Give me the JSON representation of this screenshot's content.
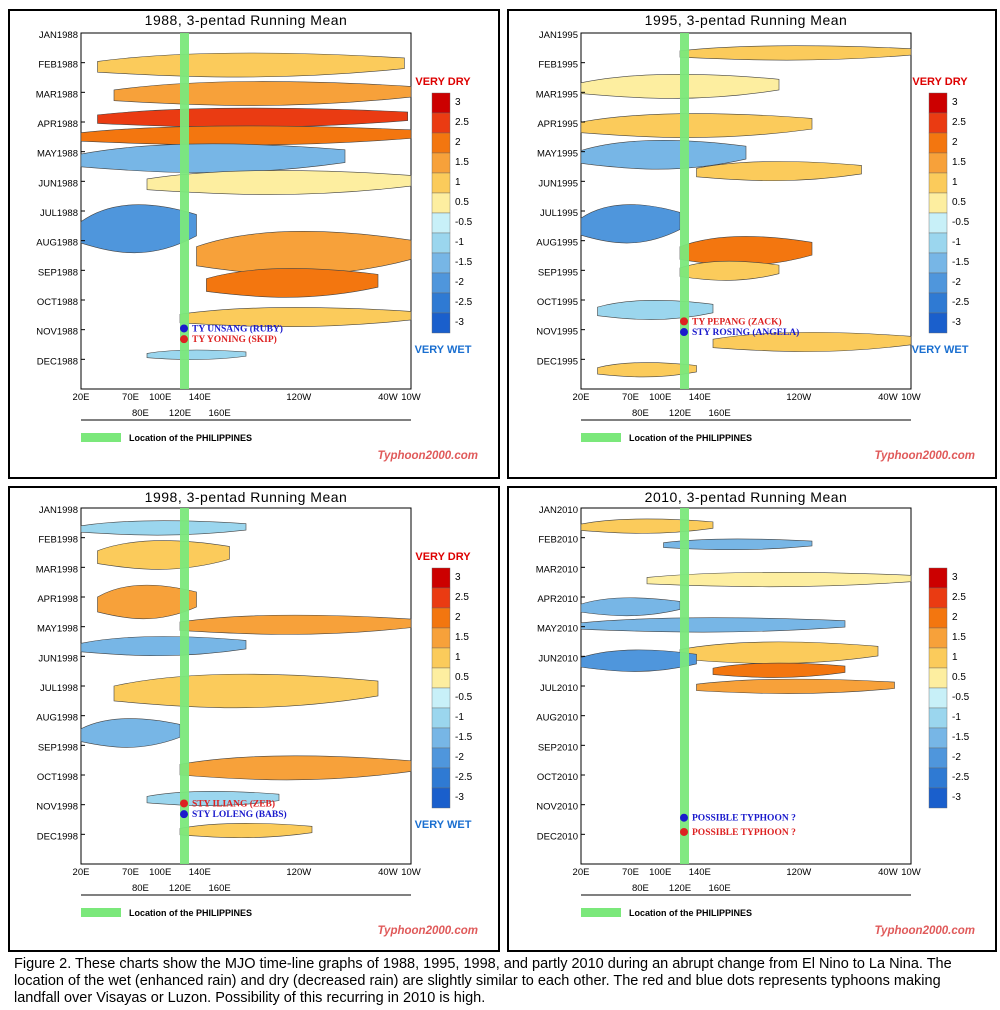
{
  "colors": {
    "very_dry": "#dd0000",
    "very_wet": "#1a6fd0",
    "philippines": "#7be87b",
    "watermark": "#e05a5a",
    "dot_blue": "#1a1acc",
    "dot_red": "#dd2222"
  },
  "legend_labels": {
    "very_dry": "VERY DRY",
    "very_wet": "VERY WET",
    "philippines": "Location of the PHILIPPINES",
    "watermark": "Typhoon2000.com"
  },
  "caption": "Figure 2. These charts  show the  MJO time-line graphs of 1988, 1995, 1998, and partly 2010 during an abrupt change from El Nino to La Nina.  The location of the wet (enhanced rain) and dry (decreased rain)  are slightly similar to each other. The red and blue dots represents typhoons making landfall over Visayas or Luzon. Possibility of this recurring in 2010 is high.",
  "chart_data": [
    {
      "type": "heatmap",
      "title": "1988, 3-pentad Running Mean",
      "y_labels": [
        "JAN1988",
        "FEB1988",
        "MAR1988",
        "APR1988",
        "MAY1988",
        "JUN1988",
        "JUL1988",
        "AUG1988",
        "SEP1988",
        "OCT1988",
        "NOV1988",
        "DEC1988"
      ],
      "x_labels_top": [
        "20E",
        "70E",
        "100E",
        "140E",
        "120W",
        "40W",
        "10W"
      ],
      "x_labels_bottom": [
        "80E",
        "120E",
        "160E"
      ],
      "colorbar_levels": [
        "3",
        "2.5",
        "2",
        "1.5",
        "1",
        "0.5",
        "-0.5",
        "-1",
        "-1.5",
        "-2",
        "-2.5",
        "-3"
      ],
      "show_extreme_labels": true,
      "events": [
        {
          "label": "TY UNSANG (RUBY)",
          "color": "blue"
        },
        {
          "label": "TY YONING (SKIP)",
          "color": "red"
        }
      ]
    },
    {
      "type": "heatmap",
      "title": "1995, 3-pentad Running Mean",
      "y_labels": [
        "JAN1995",
        "FEB1995",
        "MAR1995",
        "APR1995",
        "MAY1995",
        "JUN1995",
        "JUL1995",
        "AUG1995",
        "SEP1995",
        "OCT1995",
        "NOV1995",
        "DEC1995"
      ],
      "x_labels_top": [
        "20E",
        "70E",
        "100E",
        "140E",
        "120W",
        "40W",
        "10W"
      ],
      "x_labels_bottom": [
        "80E",
        "120E",
        "160E"
      ],
      "colorbar_levels": [
        "3",
        "2.5",
        "2",
        "1.5",
        "1",
        "0.5",
        "-0.5",
        "-1",
        "-1.5",
        "-2",
        "-2.5",
        "-3"
      ],
      "show_extreme_labels": true,
      "events": [
        {
          "label": "TY PEPANG (ZACK)",
          "color": "red"
        },
        {
          "label": "STY ROSING (ANGELA)",
          "color": "blue"
        }
      ]
    },
    {
      "type": "heatmap",
      "title": "1998, 3-pentad Running Mean",
      "y_labels": [
        "JAN1998",
        "FEB1998",
        "MAR1998",
        "APR1998",
        "MAY1998",
        "JUN1998",
        "JUL1998",
        "AUG1998",
        "SEP1998",
        "OCT1998",
        "NOV1998",
        "DEC1998"
      ],
      "x_labels_top": [
        "20E",
        "70E",
        "100E",
        "140E",
        "120W",
        "40W",
        "10W"
      ],
      "x_labels_bottom": [
        "80E",
        "120E",
        "160E"
      ],
      "colorbar_levels": [
        "3",
        "2.5",
        "2",
        "1.5",
        "1",
        "0.5",
        "-0.5",
        "-1",
        "-1.5",
        "-2",
        "-2.5",
        "-3"
      ],
      "show_extreme_labels": true,
      "events": [
        {
          "label": "STY ILIANG (ZEB)",
          "color": "red"
        },
        {
          "label": "STY LOLENG (BABS)",
          "color": "blue"
        }
      ]
    },
    {
      "type": "heatmap",
      "title": "2010, 3-pentad Running Mean",
      "y_labels": [
        "JAN2010",
        "FEB2010",
        "MAR2010",
        "APR2010",
        "MAY2010",
        "JUN2010",
        "JUL2010",
        "AUG2010",
        "SEP2010",
        "OCT2010",
        "NOV2010",
        "DEC2010"
      ],
      "x_labels_top": [
        "20E",
        "70E",
        "100E",
        "140E",
        "120W",
        "40W",
        "10W"
      ],
      "x_labels_bottom": [
        "80E",
        "120E",
        "160E"
      ],
      "colorbar_levels": [
        "3",
        "2.5",
        "2",
        "1.5",
        "1",
        "0.5",
        "-0.5",
        "-1",
        "-1.5",
        "-2",
        "-2.5",
        "-3"
      ],
      "show_extreme_labels": false,
      "data_months": 9,
      "events": [
        {
          "label": "POSSIBLE TYPHOON ?",
          "color": "blue"
        },
        {
          "label": "POSSIBLE TYPHOON ?",
          "color": "red"
        }
      ]
    }
  ]
}
